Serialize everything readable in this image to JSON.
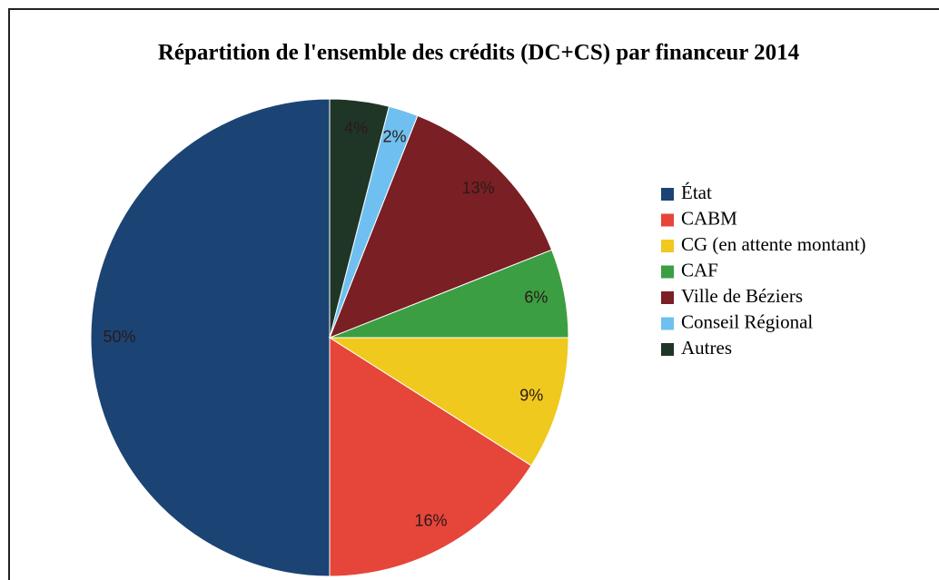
{
  "chart_data": {
    "type": "pie",
    "title": "Répartition de l'ensemble des crédits (DC+CS) par financeur 2014",
    "categories": [
      "État",
      "CABM",
      "CG (en attente montant)",
      "CAF",
      "Ville de Béziers",
      "Conseil Régional",
      "Autres"
    ],
    "values": [
      50,
      16,
      9,
      6,
      13,
      2,
      4
    ],
    "value_labels": [
      "50%",
      "16%",
      "9%",
      "6%",
      "13%",
      "2%",
      "4%"
    ],
    "colors": [
      "#1b4474",
      "#e6453a",
      "#f0c91e",
      "#3b9e42",
      "#7a1f24",
      "#6fc0f0",
      "#1f3526"
    ],
    "legend": "right"
  }
}
